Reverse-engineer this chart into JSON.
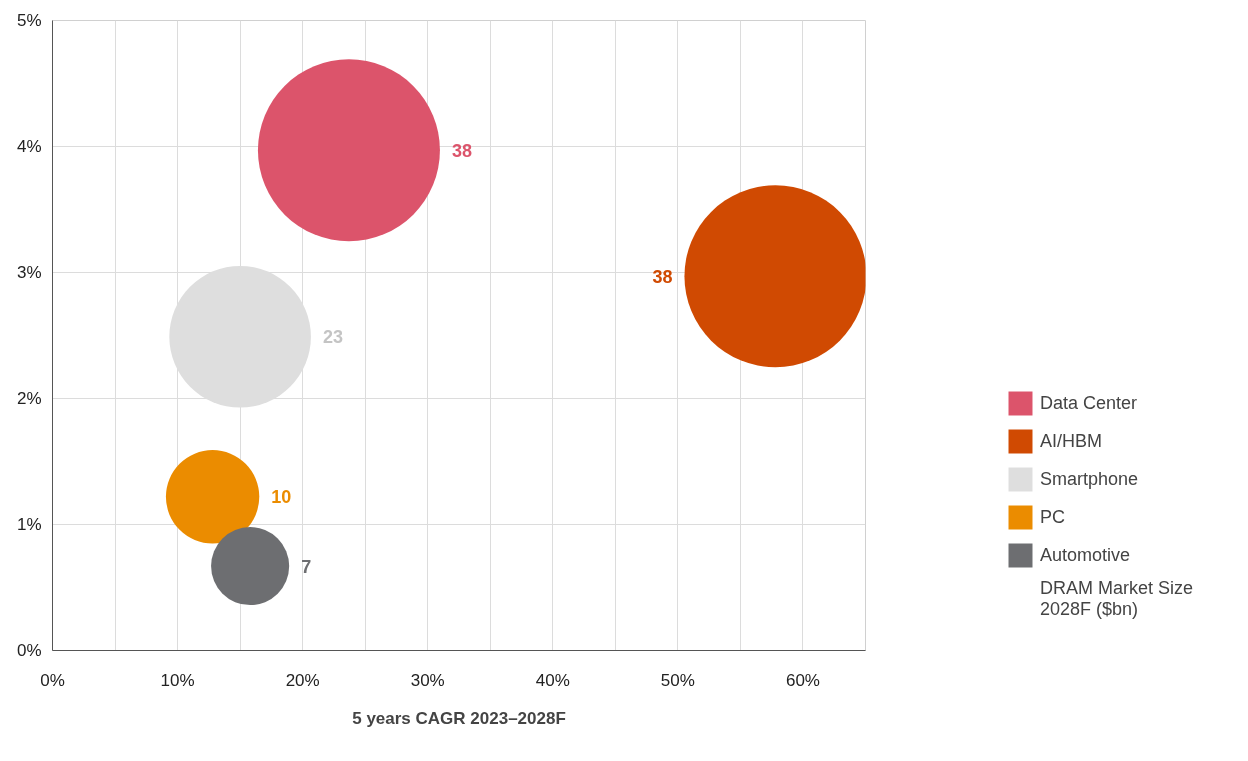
{
  "chart_data": {
    "type": "bubble",
    "xlabel": "5 years CAGR 2023–2028F",
    "xlim": [
      0,
      65
    ],
    "ylim": [
      0,
      5
    ],
    "xticks": [
      {
        "value": 0,
        "label": "0%"
      },
      {
        "value": 5,
        "label": null
      },
      {
        "value": 10,
        "label": "10%"
      },
      {
        "value": 15,
        "label": null
      },
      {
        "value": 20,
        "label": "20%"
      },
      {
        "value": 25,
        "label": null
      },
      {
        "value": 30,
        "label": "30%"
      },
      {
        "value": 35,
        "label": null
      },
      {
        "value": 40,
        "label": "40%"
      },
      {
        "value": 45,
        "label": null
      },
      {
        "value": 50,
        "label": "50%"
      },
      {
        "value": 55,
        "label": null
      },
      {
        "value": 60,
        "label": "60%"
      },
      {
        "value": 65,
        "label": null
      }
    ],
    "yticks": [
      {
        "value": 0,
        "label": "0%"
      },
      {
        "value": 1,
        "label": "1%"
      },
      {
        "value": 2,
        "label": "2%"
      },
      {
        "value": 3,
        "label": "3%"
      },
      {
        "value": 4,
        "label": "4%"
      },
      {
        "value": 5,
        "label": "5%"
      }
    ],
    "grid": true,
    "legend": "right",
    "series": [
      {
        "name": "Data Center",
        "color": "#dc546b",
        "x": [
          23.7
        ],
        "values": [
          3.97
        ],
        "sizes": [
          38
        ],
        "value_labels": [
          "38"
        ]
      },
      {
        "name": "AI/HBM",
        "color": "#d04a02",
        "x": [
          57.8
        ],
        "values": [
          2.97
        ],
        "sizes": [
          38
        ],
        "value_labels": [
          "38"
        ]
      },
      {
        "name": "Smartphone",
        "color": "#dedede",
        "x": [
          15.0
        ],
        "values": [
          2.49
        ],
        "sizes": [
          23
        ],
        "value_labels": [
          "23"
        ]
      },
      {
        "name": "PC",
        "color": "#eb8c00",
        "x": [
          12.8
        ],
        "values": [
          1.22
        ],
        "sizes": [
          10
        ],
        "value_labels": [
          "10"
        ]
      },
      {
        "name": "Automotive",
        "color": "#6d6e71",
        "x": [
          15.8
        ],
        "values": [
          0.67
        ],
        "sizes": [
          7
        ],
        "value_labels": [
          "7"
        ]
      }
    ],
    "annotations": [
      "DRAM Market Size 2028F ($bn)"
    ]
  }
}
